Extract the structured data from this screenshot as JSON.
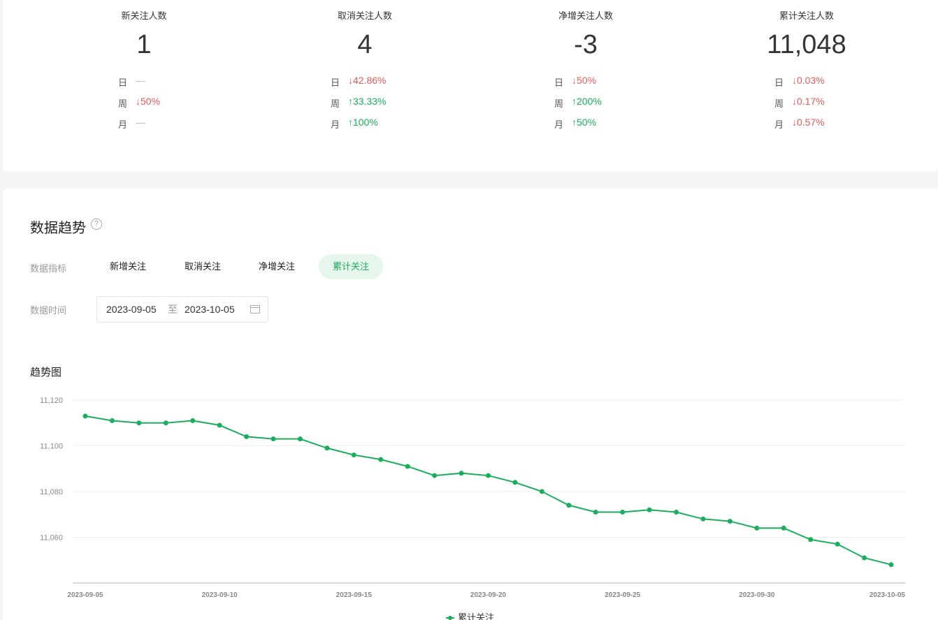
{
  "stats": [
    {
      "title": "新关注人数",
      "value": "1",
      "rows": [
        {
          "label": "日",
          "dir": "flat",
          "value": "—"
        },
        {
          "label": "周",
          "dir": "down",
          "value": "↓50%"
        },
        {
          "label": "月",
          "dir": "flat",
          "value": "—"
        }
      ]
    },
    {
      "title": "取消关注人数",
      "value": "4",
      "rows": [
        {
          "label": "日",
          "dir": "down",
          "value": "↓42.86%"
        },
        {
          "label": "周",
          "dir": "up",
          "value": "↑33.33%"
        },
        {
          "label": "月",
          "dir": "up",
          "value": "↑100%"
        }
      ]
    },
    {
      "title": "净增关注人数",
      "value": "-3",
      "rows": [
        {
          "label": "日",
          "dir": "down",
          "value": "↓50%"
        },
        {
          "label": "周",
          "dir": "up",
          "value": "↑200%"
        },
        {
          "label": "月",
          "dir": "up",
          "value": "↑50%"
        }
      ]
    },
    {
      "title": "累计关注人数",
      "value": "11,048",
      "rows": [
        {
          "label": "日",
          "dir": "down",
          "value": "↓0.03%"
        },
        {
          "label": "周",
          "dir": "down",
          "value": "↓0.17%"
        },
        {
          "label": "月",
          "dir": "down",
          "value": "↓0.57%"
        }
      ]
    }
  ],
  "trend": {
    "title": "数据趋势",
    "help_icon": "question-icon",
    "metric_label": "数据指标",
    "metrics": [
      "新增关注",
      "取消关注",
      "净增关注",
      "累计关注"
    ],
    "active_metric": "累计关注",
    "time_label": "数据时间",
    "date_start": "2023-09-05",
    "date_sep": "至",
    "date_end": "2023-10-05",
    "calendar_icon": "calendar-icon",
    "chart_title": "趋势图"
  },
  "colors": {
    "accent": "#1aad5c",
    "down": "#e05a5a",
    "up": "#1aad5c"
  },
  "chart_data": {
    "type": "line",
    "ylim": [
      11040,
      11120
    ],
    "yticks": [
      11060,
      11080,
      11100,
      11120
    ],
    "ytick_labels": [
      "11,060",
      "11,080",
      "11,100",
      "11,120"
    ],
    "x": [
      "2023-09-05",
      "2023-09-06",
      "2023-09-07",
      "2023-09-08",
      "2023-09-09",
      "2023-09-10",
      "2023-09-11",
      "2023-09-12",
      "2023-09-13",
      "2023-09-14",
      "2023-09-15",
      "2023-09-16",
      "2023-09-17",
      "2023-09-18",
      "2023-09-19",
      "2023-09-20",
      "2023-09-21",
      "2023-09-22",
      "2023-09-23",
      "2023-09-24",
      "2023-09-25",
      "2023-09-26",
      "2023-09-27",
      "2023-09-28",
      "2023-09-29",
      "2023-09-30",
      "2023-10-01",
      "2023-10-02",
      "2023-10-03",
      "2023-10-04",
      "2023-10-05"
    ],
    "xtick_labels": [
      "2023-09-05",
      "2023-09-10",
      "2023-09-15",
      "2023-09-20",
      "2023-09-25",
      "2023-09-30",
      "2023-10-05"
    ],
    "series": [
      {
        "name": "累计关注",
        "values": [
          11113,
          11111,
          11110,
          11110,
          11111,
          11109,
          11104,
          11103,
          11103,
          11099,
          11096,
          11094,
          11091,
          11087,
          11088,
          11087,
          11084,
          11080,
          11074,
          11071,
          11071,
          11072,
          11071,
          11068,
          11067,
          11064,
          11064,
          11059,
          11057,
          11051,
          11048
        ]
      }
    ],
    "legend": "bottom-center",
    "grid": true
  }
}
